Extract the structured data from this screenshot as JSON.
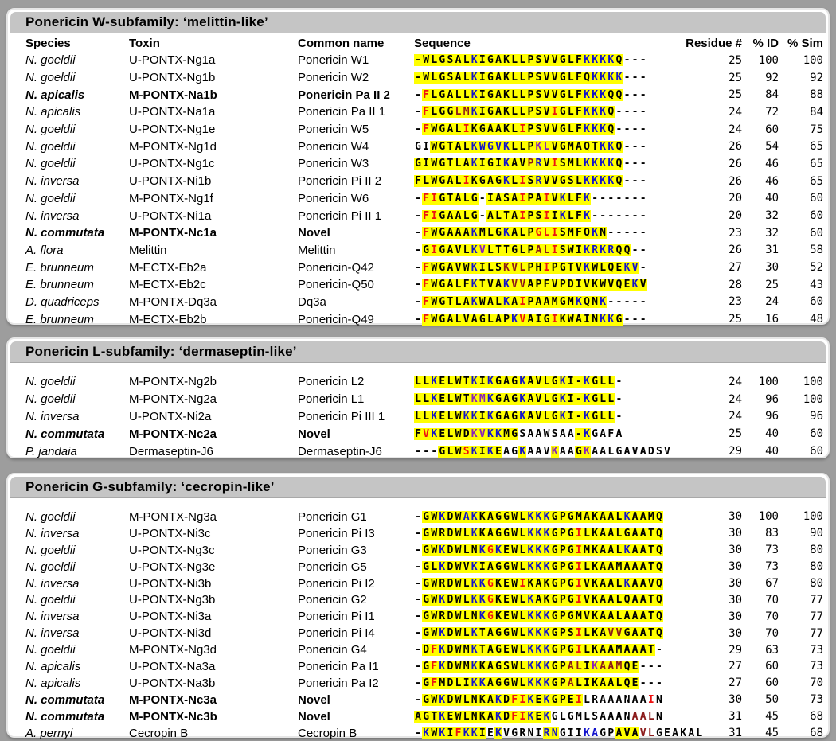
{
  "columns": {
    "species": "Species",
    "toxin": "Toxin",
    "common": "Common name",
    "sequence": "Sequence",
    "residue": "Residue #",
    "id": "% ID",
    "sim": "% Sim"
  },
  "colors": {
    "blue": "#1212cc",
    "red": "#ee1111",
    "maroon": "#8b1a1a",
    "purple": "#8822bb",
    "highlight": "#ffff00",
    "titlebar": "#c5c5c5",
    "page_bg": "#9d9d9d"
  },
  "panels": [
    {
      "key": "w-subfamily",
      "title": "Ponericin W-subfamily: ‘melittin-like’",
      "show_header": true,
      "rows": [
        {
          "species": "N. goeldii",
          "toxin": "U-PONTX-Ng1a",
          "common": "Ponericin W1",
          "bold": false,
          "seq": "-WLGSALKIGAKLLPSVVGLFKKKKQ---",
          "colors": ".......b.............bbbb....",
          "hl": "yyyyyyyyyyyyyyyyyyyyyyyyyy...",
          "residue": "25",
          "id": "100",
          "sim": "100"
        },
        {
          "species": "N. goeldii",
          "toxin": "U-PONTX-Ng1b",
          "common": "Ponericin W2",
          "bold": false,
          "seq": "-WLGSALKIGAKLLPSVVGLFQKKKK---",
          "colors": ".......b..............bbbb...",
          "hl": "yyyyyyyyyyyyyyyyyyyyyyyyyy...",
          "residue": "25",
          "id": "92",
          "sim": "92"
        },
        {
          "species": "N. apicalis",
          "toxin": "M-PONTX-Na1b",
          "common": "Ponericin Pa II 2",
          "bold": true,
          "seq": "-FLGALLKIGAKLLPSVVGLFKKKQQ---",
          "colors": ".r.....b.............bbb.....",
          "hl": ".yyyyyyyyyyyyyyyyyyyyyyyyy...",
          "residue": "25",
          "id": "84",
          "sim": "88"
        },
        {
          "species": "N. apicalis",
          "toxin": "U-PONTX-Na1a",
          "common": "Ponericin Pa II 1",
          "bold": false,
          "seq": "-FLGGLMKIGAKLLPSVIGLFKKKQ----",
          "colors": ".r...mmb.........r...bbb.....",
          "hl": ".yyyyyyyyyyyyyyyyyyyyyyyy....",
          "residue": "24",
          "id": "72",
          "sim": "84"
        },
        {
          "species": "N. goeldii",
          "toxin": "U-PONTX-Ng1e",
          "common": "Ponericin W5",
          "bold": false,
          "seq": "-FWGALIKGAAKLIPSVVGLFKKKQ----",
          "colors": ".r....r......r.......bbb.....",
          "hl": ".yyyyyyyyyyyyyyyyyyyyyyyy....",
          "residue": "24",
          "id": "60",
          "sim": "75"
        },
        {
          "species": "N. goeldii",
          "toxin": "M-PONTX-Ng1d",
          "common": "Ponericin W4",
          "bold": false,
          "seq": "GIWGTALKWGVKLLPKLVGMAQTKKQ---",
          "colors": ".......bbbbb...pp......bb....",
          "hl": "..yyyyyyyyyyyyyyyyyyyyyyyy...",
          "residue": "26",
          "id": "54",
          "sim": "65"
        },
        {
          "species": "N. goeldii",
          "toxin": "U-PONTX-Ng1c",
          "common": "Ponericin W3",
          "bold": false,
          "seq": "GIWGTLAKIGIKAVPRVISMLKKKKQ---",
          "colors": ".......b...b..mb.r...bbbb....",
          "hl": "yyyyyyyyyyyyyyyyyyyyyyyyyy...",
          "residue": "26",
          "id": "46",
          "sim": "65"
        },
        {
          "species": "N. inversa",
          "toxin": "U-PONTX-Ni1b",
          "common": "Ponericin Pi II 2",
          "bold": false,
          "seq": "FLWGALIKGAGKLISRVVGSLKKKKQ---",
          "colors": "......r....b.r.b.....bbbb....",
          "hl": "yyyyyyyyyyyyyyyyyyyyyyyyyy...",
          "residue": "26",
          "id": "46",
          "sim": "65"
        },
        {
          "species": "N. goeldii",
          "toxin": "M-PONTX-Ng1f",
          "common": "Ponericin W6",
          "bold": false,
          "seq": "-FIGTALG-IASAIPAIVKLFK-------",
          "colors": ".rr..........r..r.b..b.......",
          "hl": ".yyyyyyy.yyyyyyyyyyyyy.......",
          "residue": "20",
          "id": "40",
          "sim": "60"
        },
        {
          "species": "N. inversa",
          "toxin": "U-PONTX-Ni1a",
          "common": "Ponericin Pi II 1",
          "bold": false,
          "seq": "-FIGAALG-ALTAIPSIIKLFK-------",
          "colors": ".rr..........r..r.b..b.......",
          "hl": ".yyyyyyy.yyyyyyyyyyyyy.......",
          "residue": "20",
          "id": "32",
          "sim": "60"
        },
        {
          "species": "N. commutata",
          "toxin": "M-PONTX-Nc1a",
          "common": "Novel",
          "bold": true,
          "seq": "-FWGAAAKMLGKALPGLISMFQKN-----",
          "colors": ".r.....b...b...rrr....b......",
          "hl": ".yyyyyyyyyyyyyyyyyyyyyyy.....",
          "residue": "23",
          "id": "32",
          "sim": "60"
        },
        {
          "species": "A. flora",
          "toxin": "Melittin",
          "common": "Melittin",
          "bold": false,
          "seq": "-GIGAVLKVLTTGLPALISWIKRKRQQ--",
          "colors": "..r....bp......mmr...bbbb....",
          "hl": ".yyyyyyyyyyyyyyyyyyyyyyyyyy..",
          "residue": "26",
          "id": "31",
          "sim": "58"
        },
        {
          "species": "E. brunneum",
          "toxin": "M-ECTX-Eb2a",
          "common": "Ponericin-Q42",
          "bold": false,
          "seq": "-FWGAVWKILSKVLPHIPGTVKWLQEKV-",
          "colors": ".r.....b...mmm..r....b....bb.",
          "hl": ".yyyyyyyyyyyyyyyyyyyyyyyyyyy.",
          "residue": "27",
          "id": "30",
          "sim": "52"
        },
        {
          "species": "E. brunneum",
          "toxin": "M-ECTX-Eb2c",
          "common": "Ponericin-Q50",
          "bold": false,
          "seq": "-FWGALFKTVAKVVAPFVPDIVKWVQEKV",
          "colors": ".r.....b...bmm.............b.",
          "hl": ".yyyyyyyyyyyyyyyyyyyyyyyyyyyy",
          "residue": "28",
          "id": "25",
          "sim": "43"
        },
        {
          "species": "D. quadriceps",
          "toxin": "M-PONTX-Dq3a",
          "common": "Dq3a",
          "bold": false,
          "seq": "-FWGTLAKWALKAIPAAMGMKQNK-----",
          "colors": ".r.....b...b.r......b..b.....",
          "hl": ".yyyyyyyyyyyyyyyyyyyyyyy.....",
          "residue": "23",
          "id": "24",
          "sim": "60"
        },
        {
          "species": "E. brunneum",
          "toxin": "M-ECTX-Eb2b",
          "common": "Ponericin-Q49",
          "bold": false,
          "seq": "-FWGALVAGLAPKVAIGIKWAINKKG---",
          "colors": ".r..........br...r.....bb....",
          "hl": ".yyyyyyyyyyyyyyyyyyyyyyyyy...",
          "residue": "25",
          "id": "16",
          "sim": "48"
        }
      ]
    },
    {
      "key": "l-subfamily",
      "title": "Ponericin L-subfamily: ‘dermaseptin-like’",
      "show_header": false,
      "rows": [
        {
          "species": "N. goeldii",
          "toxin": "M-PONTX-Ng2b",
          "common": "Ponericin L2",
          "bold": false,
          "seq": "LLKELWTKIKGAGKAVLGKI-KGLL-",
          "colors": "..b....b.b...b....b..b....",
          "hl": "yyyyyyyyyyyyyyyyyyyyyyyyy.",
          "residue": "24",
          "id": "100",
          "sim": "100"
        },
        {
          "species": "N. goeldii",
          "toxin": "M-PONTX-Ng2a",
          "common": "Ponericin L1",
          "bold": false,
          "seq": "LLKELWTKMKGAGKAVLGKI-KGLL-",
          "colors": "..b....ppb...b....b..b....",
          "hl": "yyyyyyyyyyyyyyyyyyyyyyyyy.",
          "residue": "24",
          "id": "96",
          "sim": "100"
        },
        {
          "species": "N. inversa",
          "toxin": "U-PONTX-Ni2a",
          "common": "Ponericin Pi III 1",
          "bold": false,
          "seq": "LLKELWKKIKGAGKAVLGKI-KGLL-",
          "colors": "..b...bb.b...b....b..b....",
          "hl": "yyyyyyyyyyyyyyyyyyyyyyyyy.",
          "residue": "24",
          "id": "96",
          "sim": "96"
        },
        {
          "species": "N. commutata",
          "toxin": "M-PONTX-Nc2a",
          "common": "Novel",
          "bold": true,
          "seq": "FVKELWDKVKKMGSAAWSAA-KGAFA",
          "colors": ".rb....ppbb..........b....",
          "hl": "yyyyyyyyyyyyy.......yy....",
          "residue": "25",
          "id": "40",
          "sim": "60"
        },
        {
          "species": "P. jandaia",
          "toxin": "Dermaseptin-J6",
          "common": "Dermaseptin-J6",
          "bold": false,
          "seq": "---GLWSKIKEAGKAAVKAAGKAALGAVADSV",
          "colors": "......rb.b...b...p...p..........",
          "hl": "...yyyyyyyy..y...y..yy..........",
          "residue": "29",
          "id": "40",
          "sim": "60"
        }
      ]
    },
    {
      "key": "g-subfamily",
      "title": "Ponericin G-subfamily: ‘cecropin-like’",
      "show_header": false,
      "rows": [
        {
          "species": "N. goeldii",
          "toxin": "M-PONTX-Ng3a",
          "common": "Ponericin G1",
          "bold": false,
          "seq": "-GWKDWAKKAGGWLKKKGPGMAKAALKAAMQ",
          "colors": "...b..bb......bbb.........b....",
          "hl": ".yyyyyyyyyyyyyyyyyyyyyyyyyyyyyy",
          "residue": "30",
          "id": "100",
          "sim": "100"
        },
        {
          "species": "N. inversa",
          "toxin": "U-PONTX-Ni3c",
          "common": "Ponericin Pi I3",
          "bold": false,
          "seq": "-GWRDWLKKAGGWLKKKGPGILKAALGAATQ",
          "colors": ".......b......bbb...r..........",
          "hl": ".yyyyyyyyyyyyyyyyyyyyyyyyyyyyyy",
          "residue": "30",
          "id": "83",
          "sim": "90"
        },
        {
          "species": "N. goeldii",
          "toxin": "U-PONTX-Ng3c",
          "common": "Ponericin G3",
          "bold": false,
          "seq": "-GWKDWLNKGKEWLKKKGPGIMKAALKAATQ",
          "colors": "...b....brb...bbb...r.....b....",
          "hl": ".yyyyyyyyyyyyyyyyyyyyyyyyyyyyyy",
          "residue": "30",
          "id": "73",
          "sim": "80"
        },
        {
          "species": "N. goeldii",
          "toxin": "U-PONTX-Ng3e",
          "common": "Ponericin G5",
          "bold": false,
          "seq": "-GLKDWVKIAGGWLKKKGPGILKAAMAAATQ",
          "colors": "...b...b......bbb...r..........",
          "hl": ".yyyyyyyyyyyyyyyyyyyyyyyyyyyyyy",
          "residue": "30",
          "id": "73",
          "sim": "80"
        },
        {
          "species": "N. inversa",
          "toxin": "U-PONTX-Ni3b",
          "common": "Ponericin Pi I2",
          "bold": false,
          "seq": "-GWRDWLKKGKEWIKAKGPGIVKAALKAAVQ",
          "colors": ".......bbr...r......r.....b....",
          "hl": ".yyyyyyyyyyyyyyyyyyyyyyyyyyyyyy",
          "residue": "30",
          "id": "67",
          "sim": "80"
        },
        {
          "species": "N. goeldii",
          "toxin": "U-PONTX-Ng3b",
          "common": "Ponericin G2",
          "bold": false,
          "seq": "-GWKDWLKKGKEWLKAKGPGIVKAALQAATQ",
          "colors": "...b...bbr....b.....r..........",
          "hl": ".yyyyyyyyyyyyyyyyyyyyyyyyyyyyyy",
          "residue": "30",
          "id": "70",
          "sim": "77"
        },
        {
          "species": "N. inversa",
          "toxin": "U-PONTX-Ni3a",
          "common": "Ponericin Pi I1",
          "bold": false,
          "seq": "-GWRDWLNKGKEWLKKKGPGMVKAALAAATQ",
          "colors": "........br....bbb..............",
          "hl": ".yyyyyyyyyyyyyyyyyyyyyyyyyyyyyy",
          "residue": "30",
          "id": "70",
          "sim": "77"
        },
        {
          "species": "N. inversa",
          "toxin": "U-PONTX-Ni3d",
          "common": "Ponericin Pi I4",
          "bold": false,
          "seq": "-GWKDWLKTAGGWLKKKGPSILKAVVGAATQ",
          "colors": "...b...b......bbb...r...mm.....",
          "hl": ".yyyyyyyyyyyyyyyyyyyyyyyyyyyyyy",
          "residue": "30",
          "id": "70",
          "sim": "77"
        },
        {
          "species": "N. goeldii",
          "toxin": "M-PONTX-Ng3d",
          "common": "Ponericin G4",
          "bold": false,
          "seq": "-DFKDWMKTAGEWLKKKGPGILKAAMAAAT-",
          "colors": "..rb...b......bbb...r..........",
          "hl": ".yyyyyyyyyyyyyyyyyyyyyyyyyyyyy.",
          "residue": "29",
          "id": "63",
          "sim": "73"
        },
        {
          "species": "N. apicalis",
          "toxin": "U-PONTX-Na3a",
          "common": "Ponericin Pa I1",
          "bold": false,
          "seq": "-GFKDWMKKAGSWLKKKGPALIKAAMQE---",
          "colors": "..rb...b......bbb..mm.pmmm.....",
          "hl": ".yyyyyyyyyyyyyyyyyyyyyyyyyyy...",
          "residue": "27",
          "id": "60",
          "sim": "73"
        },
        {
          "species": "N. apicalis",
          "toxin": "U-PONTX-Na3b",
          "common": "Ponericin Pa I2",
          "bold": false,
          "seq": "-GFMDLIKKAGGWLKKKGPALIKAALQE---",
          "colors": "..r....bb.....bbb..m...........",
          "hl": ".yyyyyyyyyyyyyyyyyyyyyyyyyyy...",
          "residue": "27",
          "id": "60",
          "sim": "70"
        },
        {
          "species": "N. commutata",
          "toxin": "M-PONTX-Nc3a",
          "common": "Novel",
          "bold": true,
          "seq": "-GWKDWLNKAKDFIKEKGPEILRAAANAAIN",
          "colors": "...b......b.rrb.b...r........r.",
          "hl": ".yyyyyyyyyyyyyyyyyyyy..........",
          "residue": "30",
          "id": "50",
          "sim": "73"
        },
        {
          "species": "N. commutata",
          "toxin": "M-PONTX-Nc3b",
          "common": "Novel",
          "bold": true,
          "seq": "AGTKEWLNKAKDFIKEKGLGMLSAAANAALN",
          "colors": "...b......b.rrb.b..........mmm.",
          "hl": "yyyyyyyyyyyyyyyyy..............",
          "residue": "31",
          "id": "45",
          "sim": "68"
        },
        {
          "species": "A. pernyi",
          "toxin": "Cecropin B",
          "common": "Cecropin B",
          "bold": false,
          "seq": "-KWKIFKKIEKVGRNIRNGIIKAGPAVAVLGEAKAL",
          "colors": ".b.b.rbb..b.....bb...bb.....mm......",
          "hl": ".yyyyyyyy.y.....yy.......yyy........",
          "residue": "31",
          "id": "45",
          "sim": "68"
        }
      ]
    }
  ]
}
